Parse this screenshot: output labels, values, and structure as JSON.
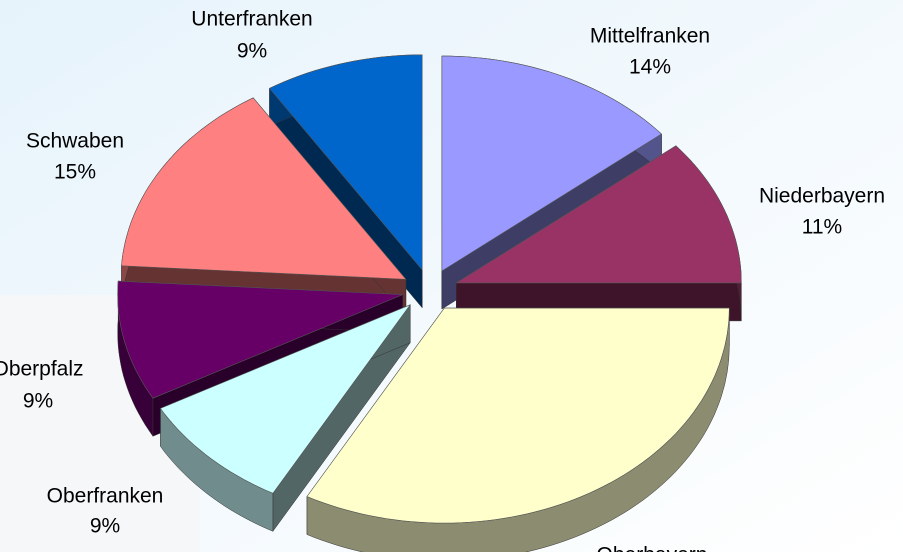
{
  "chart_data": {
    "type": "pie",
    "categories": [
      "Mittelfranken",
      "Niederbayern",
      "Oberbayern",
      "Oberfranken",
      "Oberpfalz",
      "Schwaben",
      "Unterfranken"
    ],
    "values": [
      14,
      11,
      33,
      9,
      9,
      15,
      9
    ],
    "value_labels": [
      "14%",
      "11%",
      null,
      "9%",
      "9%",
      "15%",
      "9%"
    ],
    "colors": [
      "#9999ff",
      "#993366",
      "#ffffcc",
      "#ccffff",
      "#660066",
      "#ff8080",
      "#0066cc"
    ]
  }
}
